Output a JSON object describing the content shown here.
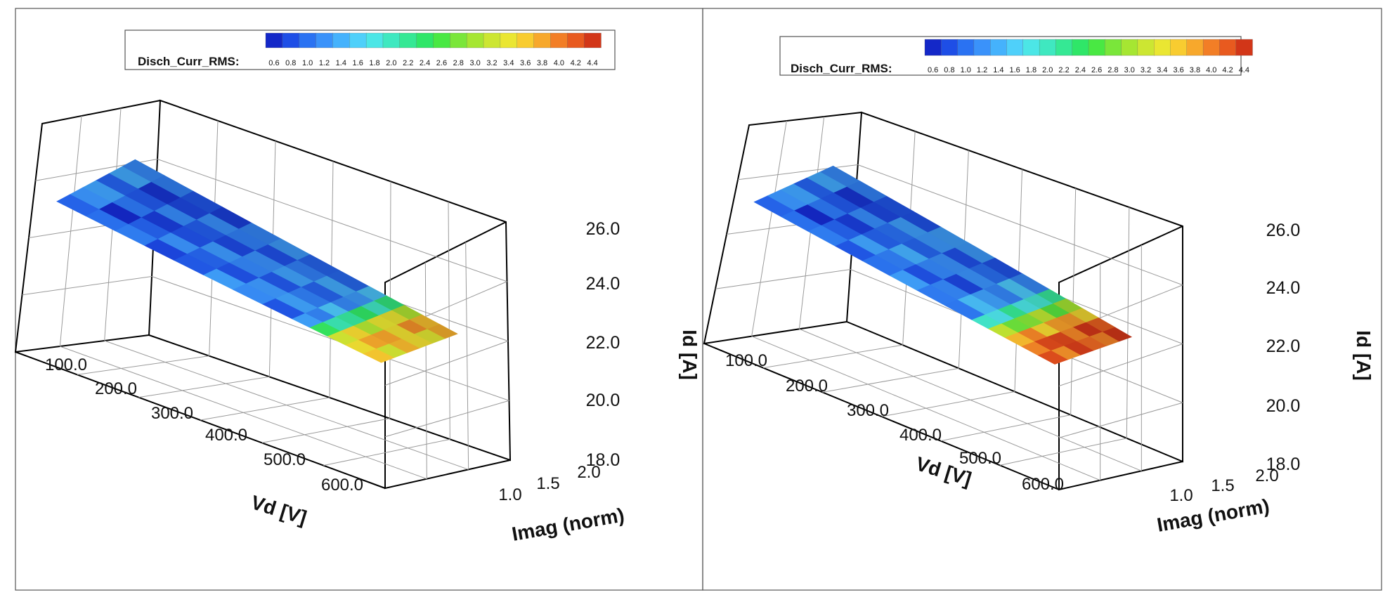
{
  "chart_data": [
    {
      "type": "surface3d",
      "legend": {
        "title": "Disch_Curr_RMS:",
        "ticks": [
          "0.6",
          "0.8",
          "1.0",
          "1.2",
          "1.4",
          "1.6",
          "1.8",
          "2.0",
          "2.2",
          "2.4",
          "2.6",
          "2.8",
          "3.0",
          "3.2",
          "3.4",
          "3.6",
          "3.8",
          "4.0",
          "4.2",
          "4.4"
        ],
        "colors": [
          "#1428c8",
          "#1e4ee6",
          "#2a72f2",
          "#3a92fa",
          "#45b2fc",
          "#4fd0fa",
          "#4ce6e6",
          "#3fe8c0",
          "#35e894",
          "#2fe668",
          "#49e843",
          "#7ae63a",
          "#a6e632",
          "#cce632",
          "#eae632",
          "#f8cc30",
          "#f7a82c",
          "#f27e26",
          "#e85a1f",
          "#d23618"
        ]
      },
      "axes": {
        "x": {
          "label": "Vd [V]",
          "ticks": [
            "100.0",
            "200.0",
            "300.0",
            "400.0",
            "500.0",
            "600.0"
          ]
        },
        "y": {
          "label": "Imag (norm)",
          "ticks": [
            "1.0",
            "1.5",
            "2.0"
          ]
        },
        "z": {
          "label": "Id [A]",
          "ticks": [
            "18.0",
            "20.0",
            "22.0",
            "24.0",
            "26.0"
          ]
        }
      },
      "surface_profile": [
        {
          "vd": 100,
          "id": 25.6,
          "rms": 1.4
        },
        {
          "vd": 150,
          "id": 25.1,
          "rms": 0.9
        },
        {
          "vd": 200,
          "id": 24.7,
          "rms": 0.8
        },
        {
          "vd": 250,
          "id": 24.2,
          "rms": 1.0
        },
        {
          "vd": 300,
          "id": 23.7,
          "rms": 0.9
        },
        {
          "vd": 350,
          "id": 23.3,
          "rms": 1.1
        },
        {
          "vd": 400,
          "id": 22.9,
          "rms": 1.0
        },
        {
          "vd": 450,
          "id": 22.5,
          "rms": 1.2
        },
        {
          "vd": 500,
          "id": 22.1,
          "rms": 1.0
        },
        {
          "vd": 530,
          "id": 21.9,
          "rms": 1.6
        },
        {
          "vd": 560,
          "id": 21.6,
          "rms": 2.8
        },
        {
          "vd": 590,
          "id": 21.3,
          "rms": 3.8
        },
        {
          "vd": 620,
          "id": 21.0,
          "rms": 3.6
        },
        {
          "vd": 650,
          "id": 20.8,
          "rms": 3.4
        }
      ]
    },
    {
      "type": "surface3d",
      "legend": {
        "title": "Disch_Curr_RMS:",
        "ticks": [
          "0.6",
          "0.8",
          "1.0",
          "1.2",
          "1.4",
          "1.6",
          "1.8",
          "2.0",
          "2.2",
          "2.4",
          "2.6",
          "2.8",
          "3.0",
          "3.2",
          "3.4",
          "3.6",
          "3.8",
          "4.0",
          "4.2",
          "4.4"
        ],
        "colors": [
          "#1428c8",
          "#1e4ee6",
          "#2a72f2",
          "#3a92fa",
          "#45b2fc",
          "#4fd0fa",
          "#4ce6e6",
          "#3fe8c0",
          "#35e894",
          "#2fe668",
          "#49e843",
          "#7ae63a",
          "#a6e632",
          "#cce632",
          "#eae632",
          "#f8cc30",
          "#f7a82c",
          "#f27e26",
          "#e85a1f",
          "#d23618"
        ]
      },
      "axes": {
        "x": {
          "label": "Vd [V]",
          "ticks": [
            "100.0",
            "200.0",
            "300.0",
            "400.0",
            "500.0",
            "600.0"
          ]
        },
        "y": {
          "label": "Imag (norm)",
          "ticks": [
            "1.0",
            "1.5",
            "2.0"
          ]
        },
        "z": {
          "label": "Id [A]",
          "ticks": [
            "18.0",
            "20.0",
            "22.0",
            "24.0",
            "26.0"
          ]
        }
      },
      "surface_profile": [
        {
          "vd": 100,
          "id": 25.4,
          "rms": 1.4
        },
        {
          "vd": 150,
          "id": 25.0,
          "rms": 0.9
        },
        {
          "vd": 200,
          "id": 24.5,
          "rms": 0.8
        },
        {
          "vd": 250,
          "id": 24.0,
          "rms": 1.0
        },
        {
          "vd": 300,
          "id": 23.6,
          "rms": 1.1
        },
        {
          "vd": 350,
          "id": 23.2,
          "rms": 1.2
        },
        {
          "vd": 400,
          "id": 22.8,
          "rms": 0.9
        },
        {
          "vd": 450,
          "id": 22.4,
          "rms": 1.1
        },
        {
          "vd": 500,
          "id": 22.0,
          "rms": 1.5
        },
        {
          "vd": 530,
          "id": 21.8,
          "rms": 2.4
        },
        {
          "vd": 560,
          "id": 21.5,
          "rms": 3.4
        },
        {
          "vd": 590,
          "id": 21.2,
          "rms": 4.1
        },
        {
          "vd": 620,
          "id": 20.9,
          "rms": 4.3
        },
        {
          "vd": 650,
          "id": 20.7,
          "rms": 4.0
        }
      ]
    }
  ]
}
